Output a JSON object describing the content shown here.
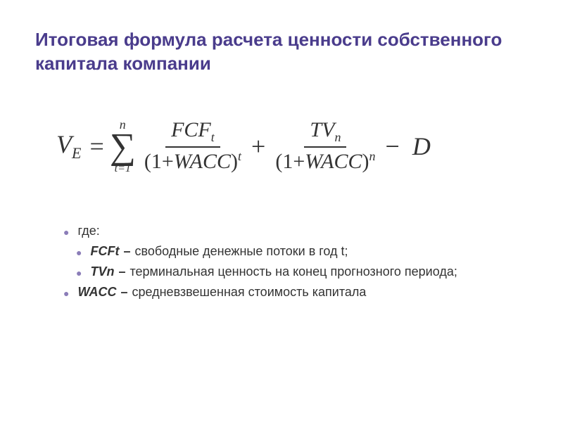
{
  "title": "Итоговая формула расчета ценности собственного капитала компании",
  "formula": {
    "lhs_base": "V",
    "lhs_sub": "E",
    "eq": "=",
    "sigma": {
      "top": "n",
      "bottom": "t=1"
    },
    "term1": {
      "num_base": "FCF",
      "num_sub": "t",
      "den_prefix": "(1+",
      "den_var": "WACC",
      "den_suffix": ")",
      "den_sup": "t"
    },
    "plus": "+",
    "term2": {
      "num_base": "TV",
      "num_sub": "n",
      "den_prefix": "(1+",
      "den_var": "WACC",
      "den_suffix": ")",
      "den_sup": "n"
    },
    "minus": "−",
    "end_var": "D"
  },
  "defs": {
    "where": "где:",
    "items": [
      {
        "term": "FCFt",
        "dash": "–",
        "text": "свободные денежные потоки в год t;"
      },
      {
        "term": "TVn",
        "dash": "–",
        "text": "терминальная ценность на конец прогнозного периода;"
      },
      {
        "term": "WACC",
        "dash": "–",
        "text": "средневзвешенная стоимость капитала"
      }
    ]
  },
  "colors": {
    "title": "#4a3c8c",
    "bullet": "#8b7db8",
    "text": "#333333",
    "background": "#ffffff"
  },
  "font": {
    "title_size": 26,
    "formula_size": 36,
    "def_size": 18
  }
}
